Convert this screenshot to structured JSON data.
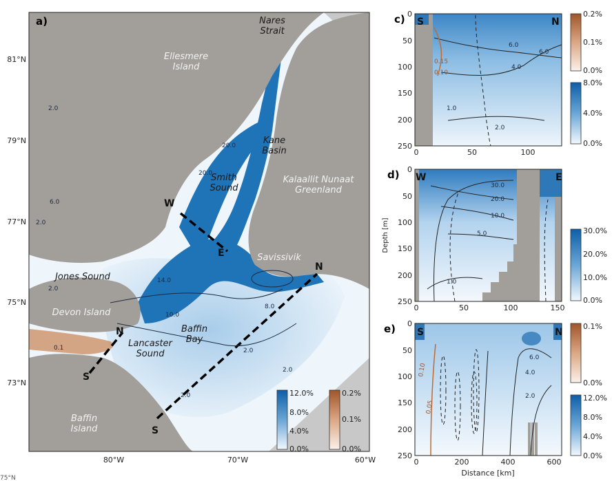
{
  "figure": {
    "map": {
      "panel_label": "a)",
      "lat_labels": [
        "81°N",
        "79°N",
        "77°N",
        "75°N",
        "73°N"
      ],
      "partial_lat_label": "75°N",
      "lon_labels": [
        "80°W",
        "70°W",
        "60°W"
      ],
      "place_labels": [
        {
          "name": "Nares\nStrait",
          "style": "dark"
        },
        {
          "name": "Ellesmere\nIsland",
          "style": "light"
        },
        {
          "name": "Kane\nBasin",
          "style": "dark"
        },
        {
          "name": "Kalaallit Nunaat\nGreenland",
          "style": "light"
        },
        {
          "name": "Smith\nSound",
          "style": "dark"
        },
        {
          "name": "Savissivik",
          "style": "light"
        },
        {
          "name": "Jones Sound",
          "style": "dark"
        },
        {
          "name": "Devon Island",
          "style": "light"
        },
        {
          "name": "Lancaster\nSound",
          "style": "dark"
        },
        {
          "name": "Baffin\nBay",
          "style": "dark"
        },
        {
          "name": "Baffin\nIsland",
          "style": "light"
        }
      ],
      "transect_ends": [
        "W",
        "E",
        "N",
        "S",
        "N",
        "S"
      ],
      "contour_labels": [
        "2.0",
        "2.0",
        "6.0",
        "20.0",
        "20.0",
        "14.0",
        "10.0",
        "8.0",
        "2.0",
        "2.0",
        "2.0",
        "2.0",
        "0.1"
      ],
      "colorbars": [
        {
          "name": "blue",
          "ticks": [
            "12.0%",
            "8.0%",
            "4.0%",
            "0.0%"
          ],
          "color_high": "#0d5ea8",
          "color_low": "#f2f8fd"
        },
        {
          "name": "brown",
          "ticks": [
            "0.2%",
            "0.1%",
            "0.0%"
          ],
          "color_high": "#a0552a",
          "color_low": "#fbf1ea"
        }
      ]
    },
    "panel_c": {
      "label": "c)",
      "ends": [
        "S",
        "N"
      ],
      "y_ticks": [
        "0",
        "50",
        "100",
        "150",
        "200",
        "250"
      ],
      "x_ticks": [
        "0",
        "50",
        "100"
      ],
      "contour_labels": [
        "6.0",
        "6.0",
        "4.0",
        "0.15",
        "0.10",
        "1.0",
        "2.0"
      ],
      "colorbar_brown": [
        "0.2%",
        "0.1%",
        "0.0%"
      ],
      "colorbar_blue": [
        "8.0%",
        "4.0%",
        "0.0%"
      ]
    },
    "panel_d": {
      "label": "d)",
      "ends": [
        "W",
        "E"
      ],
      "y_label": "Depth [m]",
      "y_ticks": [
        "0",
        "50",
        "100",
        "150",
        "200",
        "250"
      ],
      "x_ticks": [
        "0",
        "50",
        "100",
        "150"
      ],
      "contour_labels": [
        "30.0",
        "20.0",
        "10.0",
        "5.0",
        "1.0"
      ],
      "colorbar": [
        "30.0%",
        "20.0%",
        "10.0%",
        "0.0%"
      ]
    },
    "panel_e": {
      "label": "e)",
      "ends": [
        "S",
        "N"
      ],
      "x_label": "Distance [km]",
      "y_ticks": [
        "0",
        "50",
        "100",
        "150",
        "200",
        "250"
      ],
      "x_ticks": [
        "0",
        "200",
        "400",
        "600"
      ],
      "contour_labels": [
        "0.10",
        "0.05",
        "6.0",
        "4.0",
        "2.0"
      ],
      "colorbar_brown": [
        "0.1%",
        "0.0%"
      ],
      "colorbar_blue": [
        "12.0%",
        "8.0%",
        "4.0%",
        "0.0%"
      ]
    },
    "colors": {
      "land": "#a29e9a",
      "ocean_deep": "#1f73b7",
      "ocean_mid": "#7fb4da",
      "ocean_light": "#dcebf6",
      "brown": "#c98a5e",
      "outside": "#c8c8c8"
    }
  }
}
